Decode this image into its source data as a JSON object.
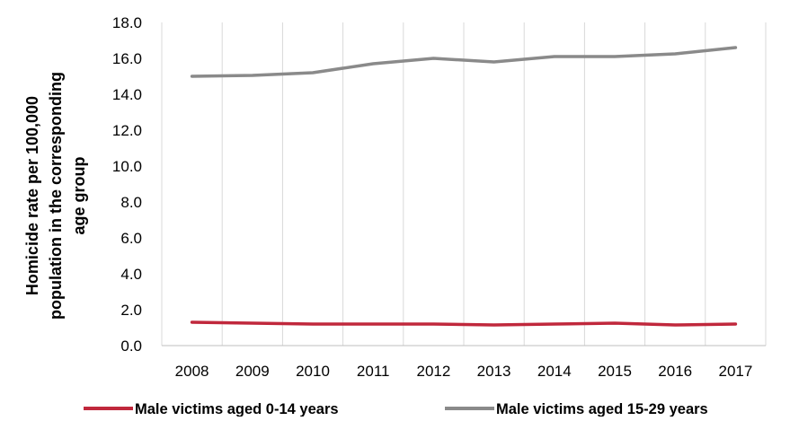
{
  "chart_data": {
    "type": "line",
    "title": "",
    "xlabel": "",
    "ylabel_lines": [
      "Homicide rate per 100,000",
      "population in the corresponding",
      "age group"
    ],
    "x": [
      "2008",
      "2009",
      "2010",
      "2011",
      "2012",
      "2013",
      "2014",
      "2015",
      "2016",
      "2017"
    ],
    "ylim": [
      0,
      18
    ],
    "yticks": [
      0,
      2,
      4,
      6,
      8,
      10,
      12,
      14,
      16,
      18
    ],
    "ytick_labels": [
      "0.0",
      "2.0",
      "4.0",
      "6.0",
      "8.0",
      "10.0",
      "12.0",
      "14.0",
      "16.0",
      "18.0"
    ],
    "grid": "vertical",
    "legend_position": "bottom",
    "series": [
      {
        "name": "Male victims aged 0-14 years",
        "color": "#c0283c",
        "values": [
          1.3,
          1.25,
          1.2,
          1.2,
          1.2,
          1.15,
          1.2,
          1.25,
          1.15,
          1.2
        ]
      },
      {
        "name": "Male victims aged 15-29 years",
        "color": "#8a8a8a",
        "values": [
          15.0,
          15.05,
          15.2,
          15.7,
          16.0,
          15.8,
          16.1,
          16.1,
          16.25,
          16.6
        ]
      }
    ]
  }
}
